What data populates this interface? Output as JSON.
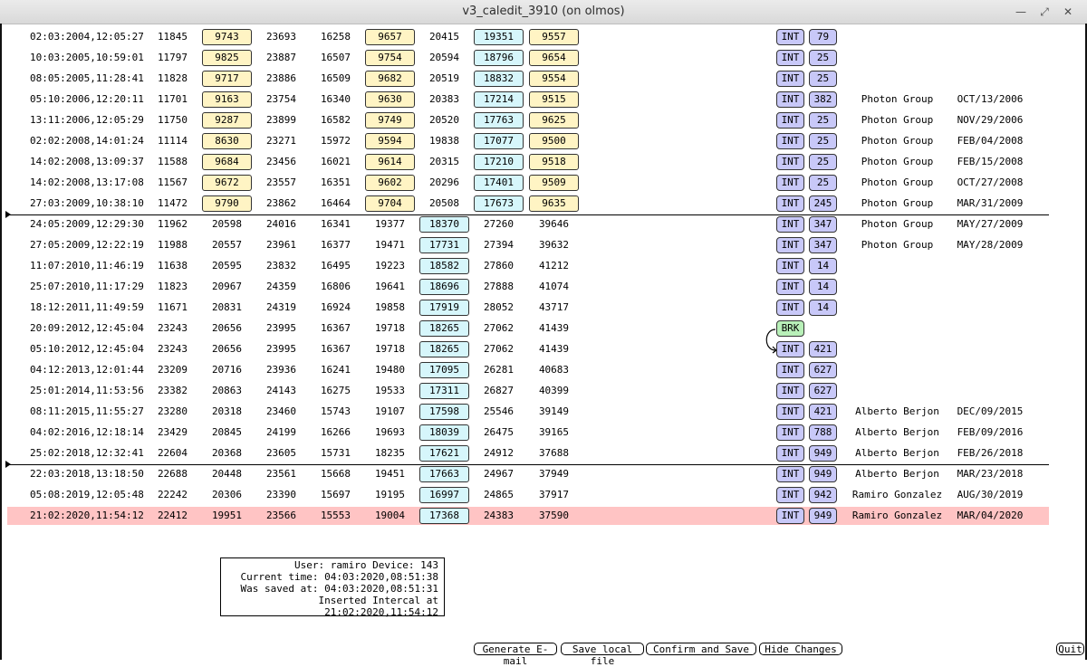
{
  "window": {
    "title": "v3_caledit_3910 (on olmos)"
  },
  "rows": [
    {
      "ts": "02:03:2004,12:05:27",
      "c1": "11845",
      "c2": "9743",
      "c3": "23693",
      "c4": "16258",
      "c5": "9657",
      "c6": "20415",
      "c7": "19351",
      "c8": "9557",
      "tag": "INT",
      "num": "79",
      "group": "",
      "date": ""
    },
    {
      "ts": "10:03:2005,10:59:01",
      "c1": "11797",
      "c2": "9825",
      "c3": "23887",
      "c4": "16507",
      "c5": "9754",
      "c6": "20594",
      "c7": "18796",
      "c8": "9654",
      "tag": "INT",
      "num": "25",
      "group": "",
      "date": ""
    },
    {
      "ts": "08:05:2005,11:28:41",
      "c1": "11828",
      "c2": "9717",
      "c3": "23886",
      "c4": "16509",
      "c5": "9682",
      "c6": "20519",
      "c7": "18832",
      "c8": "9554",
      "tag": "INT",
      "num": "25",
      "group": "",
      "date": ""
    },
    {
      "ts": "05:10:2006,12:20:11",
      "c1": "11701",
      "c2": "9163",
      "c3": "23754",
      "c4": "16340",
      "c5": "9630",
      "c6": "20383",
      "c7": "17214",
      "c8": "9515",
      "tag": "INT",
      "num": "382",
      "group": "Photon Group",
      "date": "OCT/13/2006"
    },
    {
      "ts": "13:11:2006,12:05:29",
      "c1": "11750",
      "c2": "9287",
      "c3": "23899",
      "c4": "16582",
      "c5": "9749",
      "c6": "20520",
      "c7": "17763",
      "c8": "9625",
      "tag": "INT",
      "num": "25",
      "group": "Photon Group",
      "date": "NOV/29/2006"
    },
    {
      "ts": "02:02:2008,14:01:24",
      "c1": "11114",
      "c2": "8630",
      "c3": "23271",
      "c4": "15972",
      "c5": "9594",
      "c6": "19838",
      "c7": "17077",
      "c8": "9500",
      "tag": "INT",
      "num": "25",
      "group": "Photon Group",
      "date": "FEB/04/2008"
    },
    {
      "ts": "14:02:2008,13:09:37",
      "c1": "11588",
      "c2": "9684",
      "c3": "23456",
      "c4": "16021",
      "c5": "9614",
      "c6": "20315",
      "c7": "17210",
      "c8": "9518",
      "tag": "INT",
      "num": "25",
      "group": "Photon Group",
      "date": "FEB/15/2008"
    },
    {
      "ts": "14:02:2008,13:17:08",
      "c1": "11567",
      "c2": "9672",
      "c3": "23557",
      "c4": "16351",
      "c5": "9602",
      "c6": "20296",
      "c7": "17401",
      "c8": "9509",
      "tag": "INT",
      "num": "25",
      "group": "Photon Group",
      "date": "OCT/27/2008"
    },
    {
      "ts": "27:03:2009,10:38:10",
      "c1": "11472",
      "c2": "9790",
      "c3": "23862",
      "c4": "16464",
      "c5": "9704",
      "c6": "20508",
      "c7": "17673",
      "c8": "9635",
      "tag": "INT",
      "num": "245",
      "group": "Photon Group",
      "date": "MAR/31/2009"
    },
    {
      "ts": "24:05:2009,12:29:30",
      "c1": "11962",
      "c2": "20598",
      "c3": "24016",
      "c4": "16341",
      "c5": "19377",
      "c6": "18370",
      "c7": "27260",
      "c8": "39646",
      "tag": "INT",
      "num": "347",
      "group": "Photon Group",
      "date": "MAY/27/2009"
    },
    {
      "ts": "27:05:2009,12:22:19",
      "c1": "11988",
      "c2": "20557",
      "c3": "23961",
      "c4": "16377",
      "c5": "19471",
      "c6": "17731",
      "c7": "27394",
      "c8": "39632",
      "tag": "INT",
      "num": "347",
      "group": "Photon Group",
      "date": "MAY/28/2009"
    },
    {
      "ts": "11:07:2010,11:46:19",
      "c1": "11638",
      "c2": "20595",
      "c3": "23832",
      "c4": "16495",
      "c5": "19223",
      "c6": "18582",
      "c7": "27860",
      "c8": "41212",
      "tag": "INT",
      "num": "14",
      "group": "",
      "date": ""
    },
    {
      "ts": "25:07:2010,11:17:29",
      "c1": "11823",
      "c2": "20967",
      "c3": "24359",
      "c4": "16806",
      "c5": "19641",
      "c6": "18696",
      "c7": "27888",
      "c8": "41074",
      "tag": "INT",
      "num": "14",
      "group": "",
      "date": ""
    },
    {
      "ts": "18:12:2011,11:49:59",
      "c1": "11671",
      "c2": "20831",
      "c3": "24319",
      "c4": "16924",
      "c5": "19858",
      "c6": "17919",
      "c7": "28052",
      "c8": "43717",
      "tag": "INT",
      "num": "14",
      "group": "",
      "date": ""
    },
    {
      "ts": "20:09:2012,12:45:04",
      "c1": "23243",
      "c2": "20656",
      "c3": "23995",
      "c4": "16367",
      "c5": "19718",
      "c6": "18265",
      "c7": "27062",
      "c8": "41439",
      "tag": "BRK",
      "num": "",
      "group": "",
      "date": ""
    },
    {
      "ts": "05:10:2012,12:45:04",
      "c1": "23243",
      "c2": "20656",
      "c3": "23995",
      "c4": "16367",
      "c5": "19718",
      "c6": "18265",
      "c7": "27062",
      "c8": "41439",
      "tag": "INT",
      "num": "421",
      "group": "",
      "date": ""
    },
    {
      "ts": "04:12:2013,12:01:44",
      "c1": "23209",
      "c2": "20716",
      "c3": "23936",
      "c4": "16241",
      "c5": "19480",
      "c6": "17095",
      "c7": "26281",
      "c8": "40683",
      "tag": "INT",
      "num": "627",
      "group": "",
      "date": ""
    },
    {
      "ts": "25:01:2014,11:53:56",
      "c1": "23382",
      "c2": "20863",
      "c3": "24143",
      "c4": "16275",
      "c5": "19533",
      "c6": "17311",
      "c7": "26827",
      "c8": "40399",
      "tag": "INT",
      "num": "627",
      "group": "",
      "date": ""
    },
    {
      "ts": "08:11:2015,11:55:27",
      "c1": "23280",
      "c2": "20318",
      "c3": "23460",
      "c4": "15743",
      "c5": "19107",
      "c6": "17598",
      "c7": "25546",
      "c8": "39149",
      "tag": "INT",
      "num": "421",
      "group": "Alberto Berjon",
      "date": "DEC/09/2015"
    },
    {
      "ts": "04:02:2016,12:18:14",
      "c1": "23429",
      "c2": "20845",
      "c3": "24199",
      "c4": "16266",
      "c5": "19693",
      "c6": "18039",
      "c7": "26475",
      "c8": "39165",
      "tag": "INT",
      "num": "788",
      "group": "Alberto Berjon",
      "date": "FEB/09/2016"
    },
    {
      "ts": "25:02:2018,12:32:41",
      "c1": "22604",
      "c2": "20368",
      "c3": "23605",
      "c4": "15731",
      "c5": "18235",
      "c6": "17621",
      "c7": "24912",
      "c8": "37688",
      "tag": "INT",
      "num": "949",
      "group": "Alberto Berjon",
      "date": "FEB/26/2018"
    },
    {
      "ts": "22:03:2018,13:18:50",
      "c1": "22688",
      "c2": "20448",
      "c3": "23561",
      "c4": "15668",
      "c5": "19451",
      "c6": "17663",
      "c7": "24967",
      "c8": "37949",
      "tag": "INT",
      "num": "949",
      "group": "Alberto Berjon",
      "date": "MAR/23/2018"
    },
    {
      "ts": "05:08:2019,12:05:48",
      "c1": "22242",
      "c2": "20306",
      "c3": "23390",
      "c4": "15697",
      "c5": "19195",
      "c6": "16997",
      "c7": "24865",
      "c8": "37917",
      "tag": "INT",
      "num": "942",
      "group": "Ramiro Gonzalez",
      "date": "AUG/30/2019"
    },
    {
      "ts": "21:02:2020,11:54:12",
      "c1": "22412",
      "c2": "19951",
      "c3": "23566",
      "c4": "15553",
      "c5": "19004",
      "c6": "17368",
      "c7": "24383",
      "c8": "37590",
      "tag": "INT",
      "num": "949",
      "group": "Ramiro Gonzalez",
      "date": "MAR/04/2020"
    }
  ],
  "info": {
    "user_line": "User: ramiro Device: 143",
    "current_time": "Current time: 04:03:2020,08:51:38",
    "saved_at": "Was saved at: 04:03:2020,08:51:31",
    "inserted": "Inserted Intercal at 21:02:2020,11:54:12"
  },
  "buttons": {
    "email": "Generate E-mail",
    "save_local": "Save local file",
    "confirm": "Confirm and Save",
    "hide": "Hide Changes",
    "quit": "Quit"
  }
}
